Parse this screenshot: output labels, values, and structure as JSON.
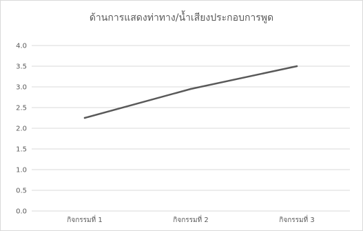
{
  "chart_data": {
    "type": "line",
    "title": "ด้านการแสดงท่าทาง/น้ำเสียงประกอบการพูด",
    "categories": [
      "กิจกรรมที่ 1",
      "กิจกรรมที่ 2",
      "กิจกรรมที่ 3"
    ],
    "series": [
      {
        "values": [
          2.25,
          2.95,
          3.5
        ],
        "color": "#595959"
      }
    ],
    "ylim": [
      0,
      4
    ],
    "yticks": [
      "0.0",
      "0.5",
      "1.0",
      "1.5",
      "2.0",
      "2.5",
      "3.0",
      "3.5",
      "4.0"
    ],
    "xlabel": "",
    "ylabel": "",
    "grid": true,
    "legend": "none",
    "colors": {
      "grid": "#d9d9d9",
      "text": "#595959",
      "line": "#595959"
    }
  }
}
